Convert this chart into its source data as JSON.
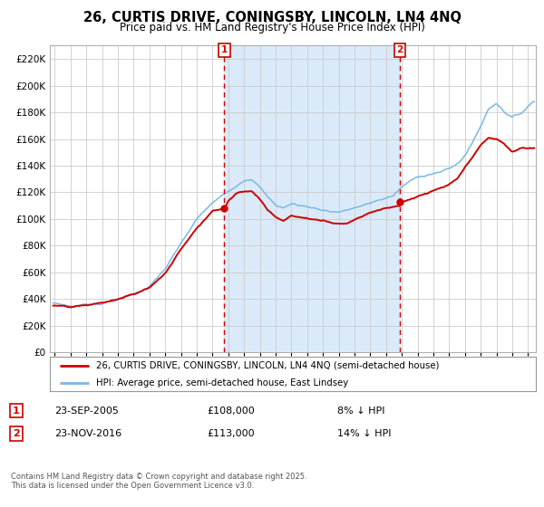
{
  "title": "26, CURTIS DRIVE, CONINGSBY, LINCOLN, LN4 4NQ",
  "subtitle": "Price paid vs. HM Land Registry's House Price Index (HPI)",
  "sale1_date": "23-SEP-2005",
  "sale1_price": 108000,
  "sale1_label": "8% ↓ HPI",
  "sale1_year": 2005.75,
  "sale2_date": "23-NOV-2016",
  "sale2_price": 113000,
  "sale2_label": "14% ↓ HPI",
  "sale2_year": 2016.88,
  "legend_line1": "26, CURTIS DRIVE, CONINGSBY, LINCOLN, LN4 4NQ (semi-detached house)",
  "legend_line2": "HPI: Average price, semi-detached house, East Lindsey",
  "footer1": "Contains HM Land Registry data © Crown copyright and database right 2025.",
  "footer2": "This data is licensed under the Open Government Licence v3.0.",
  "hpi_color": "#7ab8e8",
  "price_color": "#cc0000",
  "shading_color": "#daeaf8",
  "dashed_color": "#cc0000",
  "background_color": "#ffffff",
  "grid_color": "#cccccc",
  "ylim": [
    0,
    230000
  ],
  "yticks": [
    0,
    20000,
    40000,
    60000,
    80000,
    100000,
    120000,
    140000,
    160000,
    180000,
    200000,
    220000
  ],
  "xlim_start": 1994.7,
  "xlim_end": 2025.5,
  "hpi_anchors": [
    [
      1995.0,
      37000
    ],
    [
      1996.0,
      35000
    ],
    [
      1997.0,
      36500
    ],
    [
      1998.0,
      38000
    ],
    [
      1999.0,
      41000
    ],
    [
      2000.0,
      45000
    ],
    [
      2001.0,
      51000
    ],
    [
      2002.0,
      64000
    ],
    [
      2003.0,
      82000
    ],
    [
      2004.0,
      100000
    ],
    [
      2005.0,
      112000
    ],
    [
      2006.0,
      120000
    ],
    [
      2006.5,
      125000
    ],
    [
      2007.0,
      130000
    ],
    [
      2007.5,
      132000
    ],
    [
      2008.0,
      126000
    ],
    [
      2008.5,
      118000
    ],
    [
      2009.0,
      112000
    ],
    [
      2009.5,
      110000
    ],
    [
      2010.0,
      113000
    ],
    [
      2010.5,
      112000
    ],
    [
      2011.0,
      111000
    ],
    [
      2011.5,
      110000
    ],
    [
      2012.0,
      109000
    ],
    [
      2012.5,
      108000
    ],
    [
      2013.0,
      108000
    ],
    [
      2013.5,
      109000
    ],
    [
      2014.0,
      111000
    ],
    [
      2014.5,
      112000
    ],
    [
      2015.0,
      114000
    ],
    [
      2015.5,
      116000
    ],
    [
      2016.0,
      118000
    ],
    [
      2016.5,
      120000
    ],
    [
      2017.0,
      126000
    ],
    [
      2017.5,
      130000
    ],
    [
      2018.0,
      133000
    ],
    [
      2018.5,
      135000
    ],
    [
      2019.0,
      137000
    ],
    [
      2019.5,
      138000
    ],
    [
      2020.0,
      140000
    ],
    [
      2020.5,
      143000
    ],
    [
      2021.0,
      150000
    ],
    [
      2021.5,
      160000
    ],
    [
      2022.0,
      172000
    ],
    [
      2022.5,
      185000
    ],
    [
      2023.0,
      190000
    ],
    [
      2023.5,
      184000
    ],
    [
      2024.0,
      180000
    ],
    [
      2024.5,
      182000
    ],
    [
      2025.33,
      192000
    ]
  ],
  "prop_anchors": [
    [
      1995.0,
      35000
    ],
    [
      1996.0,
      33000
    ],
    [
      1997.0,
      34000
    ],
    [
      1998.0,
      36000
    ],
    [
      1999.0,
      38500
    ],
    [
      2000.0,
      42000
    ],
    [
      2001.0,
      47000
    ],
    [
      2002.0,
      58000
    ],
    [
      2003.0,
      76000
    ],
    [
      2004.0,
      93000
    ],
    [
      2005.0,
      106000
    ],
    [
      2005.75,
      108000
    ],
    [
      2006.0,
      114000
    ],
    [
      2006.5,
      120000
    ],
    [
      2007.0,
      122000
    ],
    [
      2007.5,
      122000
    ],
    [
      2008.0,
      116000
    ],
    [
      2008.5,
      108000
    ],
    [
      2009.0,
      103000
    ],
    [
      2009.5,
      100000
    ],
    [
      2010.0,
      104000
    ],
    [
      2010.5,
      103000
    ],
    [
      2011.0,
      102000
    ],
    [
      2011.5,
      101000
    ],
    [
      2012.0,
      100000
    ],
    [
      2012.5,
      99000
    ],
    [
      2013.0,
      98500
    ],
    [
      2013.5,
      99000
    ],
    [
      2014.0,
      102000
    ],
    [
      2014.5,
      105000
    ],
    [
      2015.0,
      108000
    ],
    [
      2015.5,
      110000
    ],
    [
      2016.0,
      112000
    ],
    [
      2016.88,
      113000
    ],
    [
      2017.0,
      116000
    ],
    [
      2017.5,
      118000
    ],
    [
      2018.0,
      120000
    ],
    [
      2018.5,
      122000
    ],
    [
      2019.0,
      124000
    ],
    [
      2019.5,
      126000
    ],
    [
      2020.0,
      128000
    ],
    [
      2020.5,
      132000
    ],
    [
      2021.0,
      140000
    ],
    [
      2021.5,
      148000
    ],
    [
      2022.0,
      156000
    ],
    [
      2022.5,
      162000
    ],
    [
      2023.0,
      161000
    ],
    [
      2023.5,
      157000
    ],
    [
      2024.0,
      151000
    ],
    [
      2024.5,
      154000
    ],
    [
      2025.33,
      154000
    ]
  ]
}
